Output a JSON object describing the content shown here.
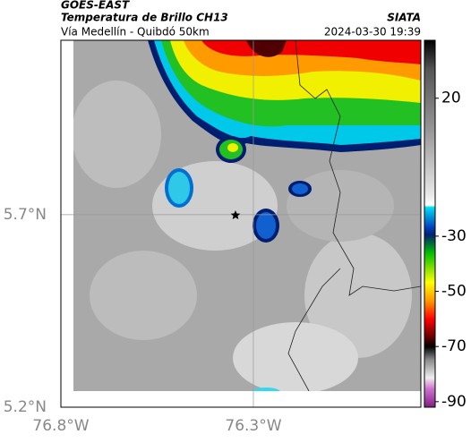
{
  "header": {
    "satellite": "GOES-EAST",
    "product": "Temperatura de Brillo CH13",
    "route": "Vía Medellín - Quibdó 50km",
    "source": "SIATA",
    "timestamp": "2024-03-30 19:39"
  },
  "map": {
    "xlim": [
      -76.8,
      -75.865
    ],
    "ylim": [
      5.2,
      6.153
    ],
    "xticks": [
      {
        "value": -76.8,
        "label": "76.8°W"
      },
      {
        "value": -76.3,
        "label": "76.3°W"
      }
    ],
    "yticks": [
      {
        "value": 5.2,
        "label": "5.2°N"
      },
      {
        "value": 5.7,
        "label": "5.7°N"
      }
    ]
  },
  "colorbar": {
    "lim": [
      41,
      -92
    ],
    "ticks": [
      20,
      -30,
      -50,
      -70,
      -90
    ]
  }
}
